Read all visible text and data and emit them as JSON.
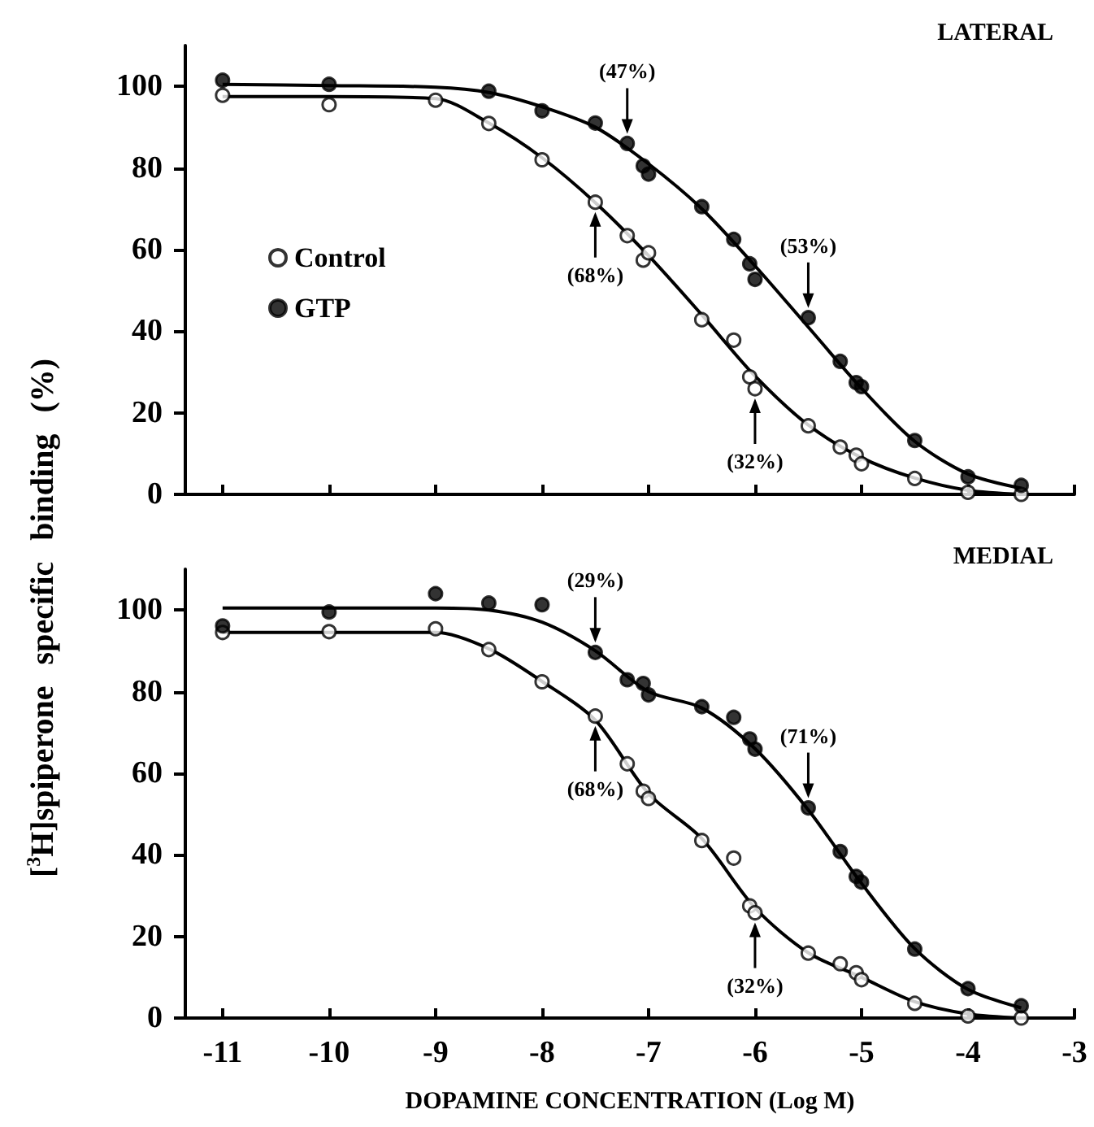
{
  "chart_data": [
    {
      "type": "scatter",
      "title": "LATERAL",
      "ylabel": "[$^{3}$H]spiperone specific binding (%)",
      "xlim": [
        -11.35,
        -3
      ],
      "xticks": [
        -11,
        -10,
        -9,
        -8,
        -7,
        -6,
        -5,
        -4,
        -3
      ],
      "ylim": [
        0,
        110
      ],
      "yticks": [
        0,
        20,
        40,
        60,
        80,
        100
      ],
      "tick_labels": "y",
      "legend": "left",
      "marker": "circle",
      "grid": false,
      "series": [
        {
          "name": "Control",
          "color": "#ffffff",
          "x": [
            -11,
            -10,
            -9,
            -8.5,
            -8,
            -7.5,
            -7.2,
            -7.05,
            -7,
            -6.5,
            -6.2,
            -6.05,
            -6,
            -5.5,
            -5.2,
            -5.05,
            -5,
            -4.5,
            -4,
            -3.5
          ],
          "values": [
            97.8,
            95.5,
            96.6,
            90.9,
            82,
            71.6,
            63.4,
            57.4,
            59.2,
            42.8,
            37.8,
            28.8,
            25.9,
            16.8,
            11.6,
            9.6,
            7.5,
            3.9,
            0.5,
            0
          ]
        },
        {
          "name": "GTP",
          "color": "#000000",
          "x": [
            -11,
            -10,
            -8.5,
            -8,
            -7.5,
            -7.2,
            -7.05,
            -7,
            -6.5,
            -6.2,
            -6.05,
            -6,
            -5.5,
            -5.2,
            -5.05,
            -5,
            -4.5,
            -4,
            -3.5
          ],
          "values": [
            101.5,
            100.5,
            98.8,
            94,
            91,
            86,
            80.5,
            78.5,
            70.5,
            62.5,
            56.5,
            52.7,
            43.3,
            32.6,
            27.4,
            26.4,
            13.2,
            4.3,
            2.2
          ]
        },
        {
          "type": "line",
          "marker": "none",
          "color": "#000000",
          "x": [
            -11,
            -10,
            -9,
            -8.5,
            -8,
            -7.5,
            -7,
            -6.5,
            -6,
            -5.5,
            -5,
            -4.5,
            -4,
            -3.5
          ],
          "values": [
            97.5,
            97.5,
            97,
            91,
            82.5,
            71.5,
            58.5,
            44,
            29,
            17,
            9,
            4,
            1,
            0
          ]
        },
        {
          "type": "line",
          "marker": "none",
          "color": "#000000",
          "x": [
            -11,
            -10,
            -9,
            -8.5,
            -8,
            -7.5,
            -7,
            -6.5,
            -6,
            -5.5,
            -5,
            -4.5,
            -4,
            -3.5
          ],
          "values": [
            100.5,
            100.2,
            99.8,
            98.5,
            95,
            90,
            81,
            70,
            56,
            41,
            26,
            13,
            5,
            1.5
          ]
        }
      ],
      "annotations": [
        {
          "text": "(47%)",
          "x": -7.2,
          "y": 86
        },
        {
          "text": "(53%)",
          "x": -5.5,
          "y": 43.3
        },
        {
          "text": "(68%)",
          "x": -7.5,
          "y": 71.6
        },
        {
          "text": "(32%)",
          "x": -6,
          "y": 25.9
        }
      ]
    },
    {
      "type": "scatter",
      "title": "MEDIAL",
      "xlabel": "DOPAMINE CONCENTRATION (Log M)",
      "xlim": [
        -11.35,
        -3
      ],
      "xticks": [
        -11,
        -10,
        -9,
        -8,
        -7,
        -6,
        -5,
        -4,
        -3
      ],
      "ylim": [
        0,
        110
      ],
      "yticks": [
        0,
        20,
        40,
        60,
        80,
        100
      ],
      "marker": "circle",
      "grid": false,
      "series": [
        {
          "color": "#ffffff",
          "x": [
            -11,
            -10,
            -9,
            -8.5,
            -8,
            -7.5,
            -7.2,
            -7.05,
            -7,
            -6.5,
            -6.2,
            -6.05,
            -6,
            -5.5,
            -5.2,
            -5.05,
            -5,
            -4.5,
            -4,
            -3.5
          ],
          "values": [
            94.5,
            94.7,
            95.4,
            90.3,
            82.4,
            74,
            62.3,
            55.6,
            53.8,
            43.5,
            39.2,
            27.5,
            25.8,
            15.9,
            13.3,
            11.1,
            9.4,
            3.6,
            0.5,
            0
          ]
        },
        {
          "color": "#000000",
          "x": [
            -11,
            -10,
            -9,
            -8.5,
            -8,
            -7.5,
            -7.2,
            -7.05,
            -7,
            -6.5,
            -6.2,
            -6.05,
            -6,
            -5.5,
            -5.2,
            -5.05,
            -5,
            -4.5,
            -4,
            -3.5
          ],
          "values": [
            96.1,
            99.5,
            104,
            101.7,
            101.3,
            89.6,
            82.9,
            82,
            79.2,
            76.3,
            73.7,
            68.4,
            65.9,
            51.5,
            40.8,
            34.7,
            33.3,
            16.9,
            7.2,
            3
          ]
        },
        {
          "type": "line",
          "marker": "none",
          "color": "#000000",
          "x": [
            -11,
            -10,
            -9,
            -8.5,
            -8,
            -7.5,
            -7,
            -6.5,
            -6,
            -5.5,
            -5,
            -4.5,
            -4,
            -3.5
          ],
          "values": [
            94.5,
            94.5,
            94.5,
            90.5,
            82.5,
            73,
            55,
            44,
            27,
            16,
            10,
            4,
            1,
            0
          ]
        },
        {
          "type": "line",
          "marker": "none",
          "color": "#000000",
          "x": [
            -11,
            -10,
            -9,
            -8.5,
            -8,
            -7.5,
            -7,
            -6.5,
            -6,
            -5.5,
            -5,
            -4.5,
            -4,
            -3.5
          ],
          "values": [
            100.5,
            100.5,
            100.5,
            100,
            97,
            90,
            80,
            76,
            66,
            51,
            33,
            17,
            7,
            2.5
          ]
        }
      ],
      "annotations": [
        {
          "text": "(29%)",
          "x": -7.5,
          "y": 89.6
        },
        {
          "text": "(71%)",
          "x": -5.5,
          "y": 51.5
        },
        {
          "text": "(68%)",
          "x": -7.5,
          "y": 74
        },
        {
          "text": "(32%)",
          "x": -6,
          "y": 25.8
        }
      ]
    }
  ]
}
